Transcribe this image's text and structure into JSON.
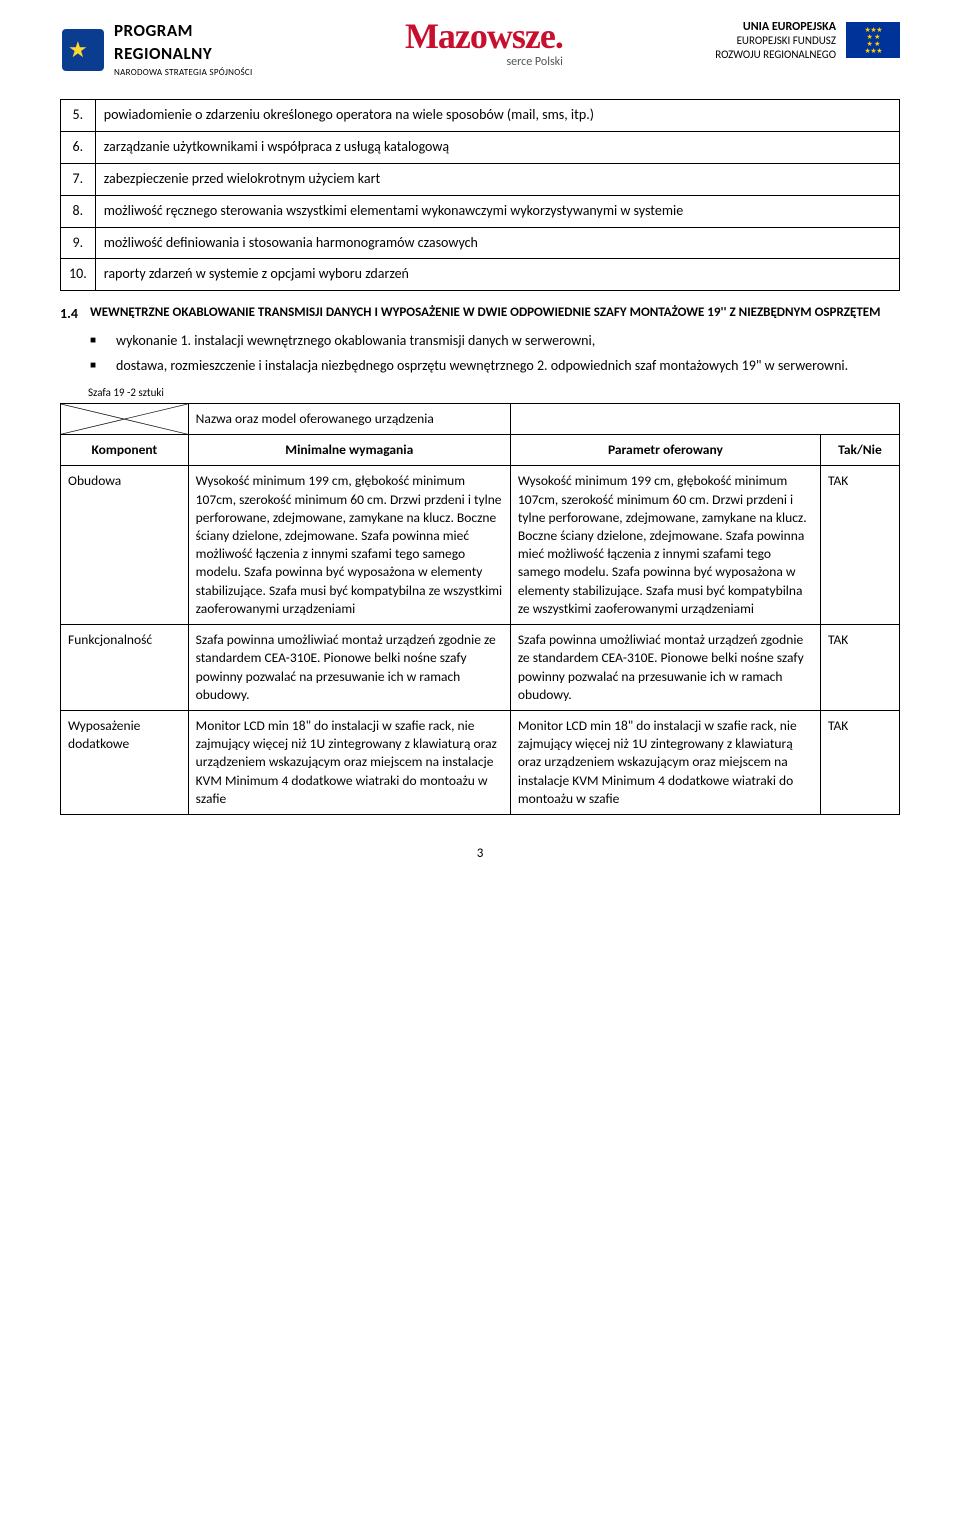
{
  "header": {
    "left": {
      "line1": "PROGRAM",
      "line2": "REGIONALNY",
      "line3": "NARODOWA STRATEGIA SPÓJNOŚCI"
    },
    "center": {
      "logo": "Mazowsze.",
      "sub": "serce Polski"
    },
    "right": {
      "l1": "UNIA EUROPEJSKA",
      "l2": "EUROPEJSKI FUNDUSZ",
      "l3": "ROZWOJU REGIONALNEGO"
    }
  },
  "listA": [
    {
      "n": "5.",
      "t": "powiadomienie o zdarzeniu określonego operatora na wiele sposobów (mail, sms, itp.)"
    },
    {
      "n": "6.",
      "t": "zarządzanie użytkownikami i współpraca z usługą katalogową"
    },
    {
      "n": "7.",
      "t": "zabezpieczenie przed wielokrotnym użyciem kart"
    },
    {
      "n": "8.",
      "t": "możliwość ręcznego sterowania wszystkimi elementami wykonawczymi wykorzystywanymi w systemie"
    },
    {
      "n": "9.",
      "t": "możliwość definiowania i stosowania harmonogramów czasowych"
    },
    {
      "n": "10.",
      "t": "raporty zdarzeń w systemie z opcjami wyboru zdarzeń"
    }
  ],
  "section": {
    "num": "1.4",
    "title": "WEWNĘTRZNE OKABLOWANIE TRANSMISJI DANYCH I WYPOSAŻENIE W DWIE ODPOWIEDNIE SZAFY MONTAŻOWE 19'' Z NIEZBĘDNYM OSPRZĘTEM"
  },
  "bullets": [
    "wykonanie 1. instalacji wewnętrznego okablowania transmisji danych w serwerowni,",
    "dostawa, rozmieszczenie i instalacja niezbędnego osprzętu wewnętrznego 2. odpowiednich szaf montażowych 19\" w serwerowni."
  ],
  "szafa_label": "Szafa 19 -2 sztuki",
  "spec": {
    "name_row_label": "Nazwa oraz model oferowanego urządzenia",
    "head": {
      "c1": "Komponent",
      "c2": "Minimalne wymagania",
      "c3": "Parametr oferowany",
      "c4": "Tak/Nie"
    },
    "rows": [
      {
        "c1": "Obudowa",
        "c2": "Wysokość minimum 199 cm, głębokość minimum 107cm, szerokość minimum 60 cm. Drzwi przdeni i tylne perforowane, zdejmowane, zamykane na klucz. Boczne ściany dzielone, zdejmowane. Szafa powinna mieć możliwość łączenia z innymi szafami tego samego modelu. Szafa powinna być wyposażona w elementy stabilizujące. Szafa musi być kompatybilna ze wszystkimi zaoferowanymi urządzeniami",
        "c3": "Wysokość minimum 199 cm, głębokość minimum 107cm, szerokość minimum 60 cm. Drzwi przdeni i tylne perforowane, zdejmowane, zamykane na klucz. Boczne ściany dzielone, zdejmowane. Szafa powinna mieć możliwość łączenia z innymi szafami tego samego modelu. Szafa powinna być wyposażona w elementy stabilizujące. Szafa musi być kompatybilna ze wszystkimi zaoferowanymi urządzeniami",
        "c4": "TAK"
      },
      {
        "c1": "Funkcjonalność",
        "c2": "Szafa powinna umożliwiać montaż urządzeń zgodnie ze standardem CEA-310E. Pionowe belki nośne szafy powinny pozwalać na przesuwanie ich w ramach obudowy.",
        "c3": "Szafa powinna umożliwiać montaż urządzeń zgodnie ze standardem CEA-310E. Pionowe belki nośne szafy powinny pozwalać na przesuwanie ich w ramach obudowy.",
        "c4": "TAK"
      },
      {
        "c1": "Wyposażenie dodatkowe",
        "c2": "Monitor LCD min 18\" do instalacji w szafie rack, nie zajmujący więcej niż 1U zintegrowany z klawiaturą oraz urządzeniem wskazującym oraz miejscem na instalacje KVM Minimum 4 dodatkowe wiatraki do montoażu w szafie",
        "c3": "Monitor LCD min 18\" do instalacji w szafie rack, nie zajmujący więcej niż 1U zintegrowany z klawiaturą oraz urządzeniem wskazującym oraz miejscem na instalacje KVM Minimum 4 dodatkowe wiatraki do montoażu w szafie",
        "c4": "TAK"
      }
    ]
  },
  "page_num": "3"
}
